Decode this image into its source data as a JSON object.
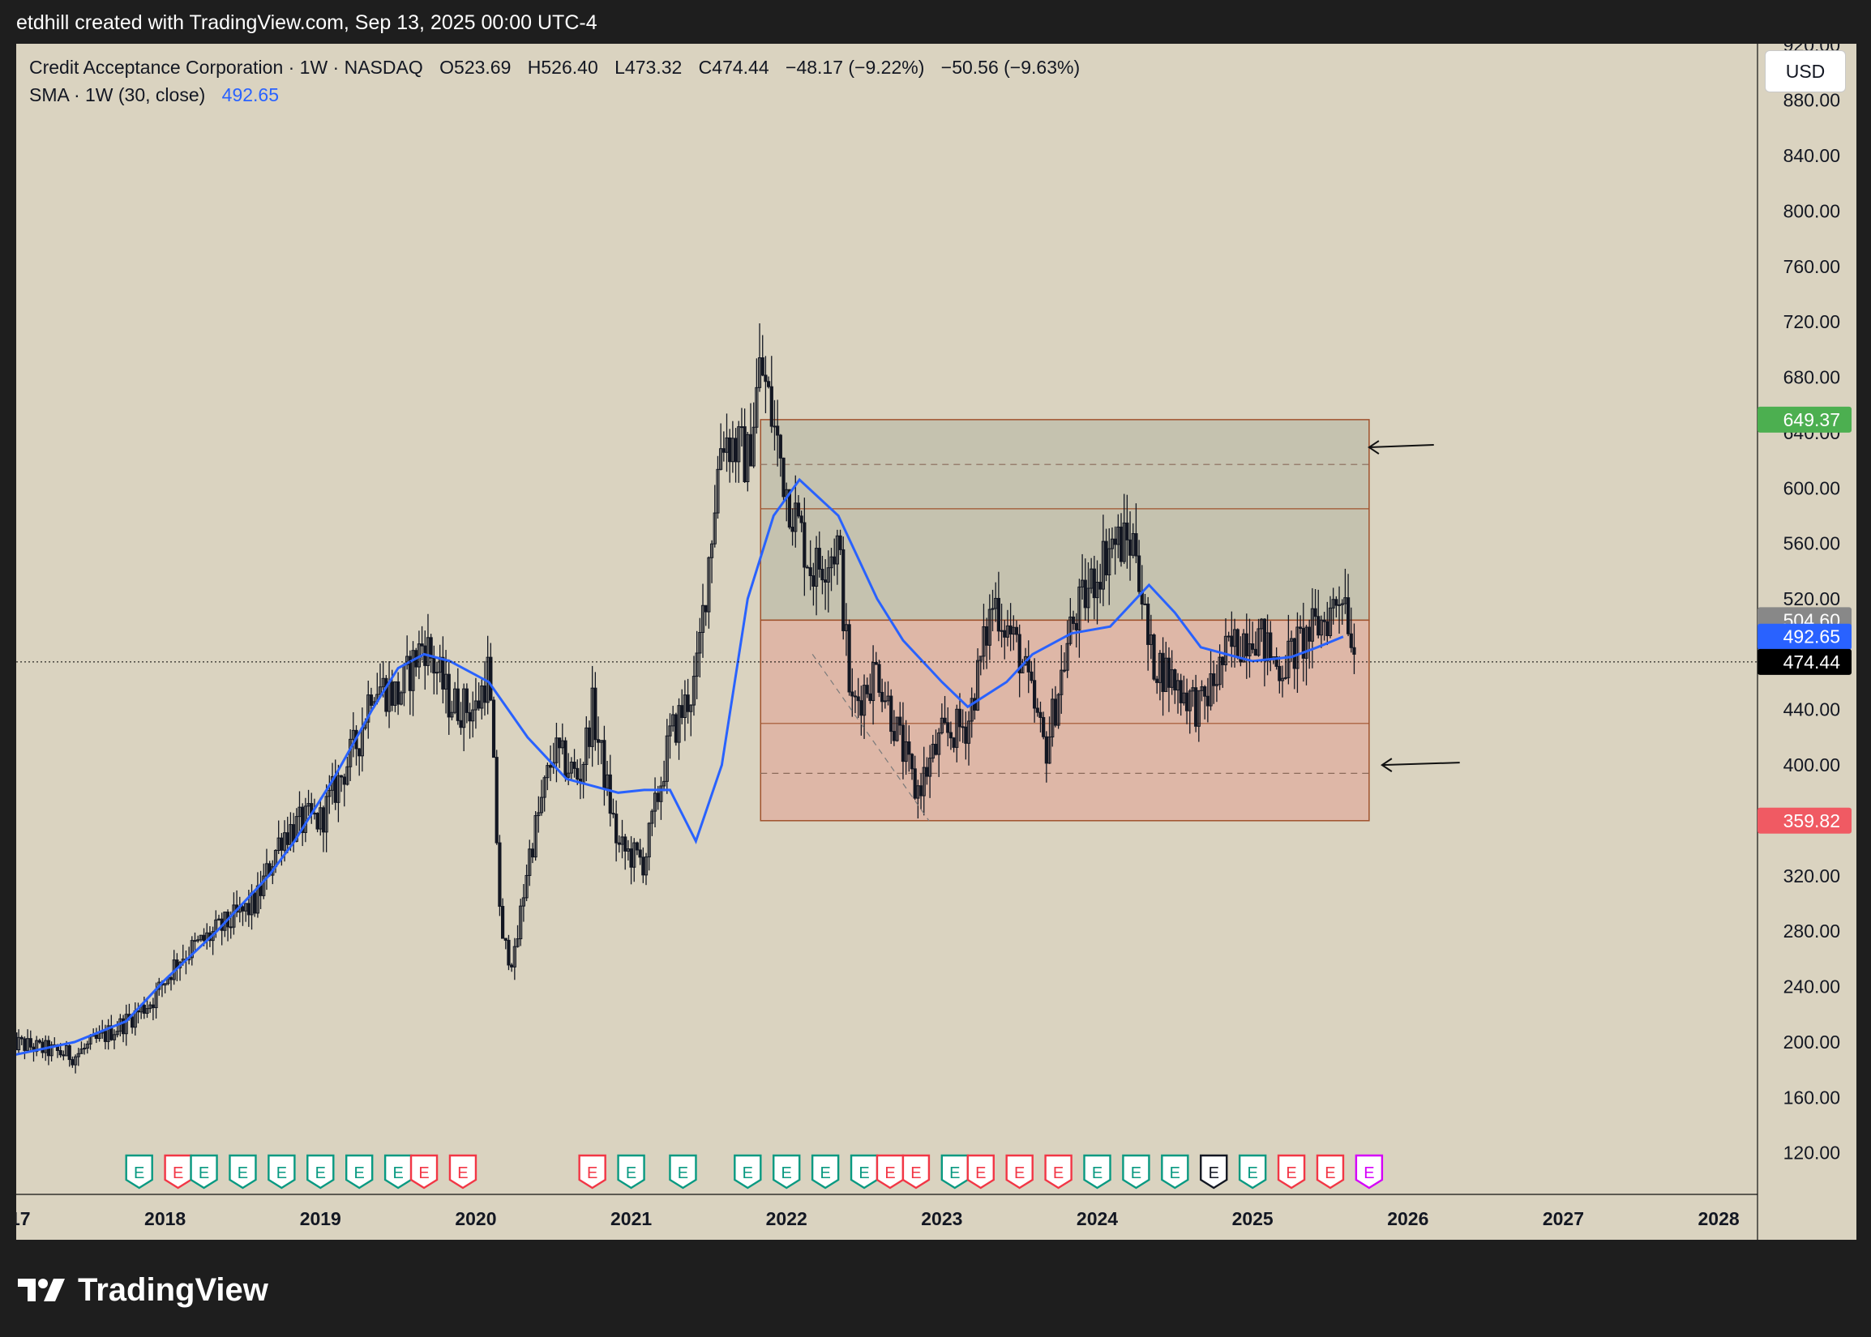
{
  "attribution": "etdhill created with TradingView.com, Sep 13, 2025 00:00 UTC-4",
  "header": {
    "symbol_line": [
      "Credit Acceptance Corporation · 1W · NASDAQ",
      "O523.69",
      "H526.40",
      "L473.32",
      "C474.44",
      "−48.17 (−9.22%)",
      "−50.56 (−9.63%)"
    ],
    "sma_label": "SMA · 1W (30, close)",
    "sma_value": "492.65"
  },
  "currency_button": "USD",
  "footer_brand": "TradingView",
  "colors": {
    "background": "#dad3c0",
    "candle": "#131722",
    "sma": "#2962ff",
    "zone_upper": "#b5b5a0",
    "zone_lower": "#e0a89a",
    "label_green": "#4caf50",
    "label_red": "#f05a63",
    "label_gray": "#888888",
    "label_blue": "#2962ff",
    "label_black": "#000000",
    "earnings_green": "#089981",
    "earnings_red": "#f23645"
  },
  "chart_data": {
    "type": "candlestick",
    "title": "Credit Acceptance Corporation · 1W · NASDAQ",
    "ylim": [
      90,
      950
    ],
    "yticks": [
      "120.00",
      "160.00",
      "200.00",
      "240.00",
      "280.00",
      "320.00",
      "360.00",
      "400.00",
      "440.00",
      "480.00",
      "520.00",
      "560.00",
      "600.00",
      "640.00",
      "680.00",
      "720.00",
      "760.00",
      "800.00",
      "840.00",
      "880.00",
      "920.00"
    ],
    "xticks": [
      "2017",
      "2018",
      "2019",
      "2020",
      "2021",
      "2022",
      "2023",
      "2024",
      "2025",
      "2026",
      "2027",
      "2028"
    ],
    "x_range": [
      "2017-01",
      "2028-04"
    ],
    "price_series": [
      [
        "2017-01",
        200
      ],
      [
        "2017-06",
        190
      ],
      [
        "2017-10",
        215
      ],
      [
        "2017-12",
        230
      ],
      [
        "2018-02",
        260
      ],
      [
        "2018-05",
        280
      ],
      [
        "2018-08",
        300
      ],
      [
        "2018-10",
        350
      ],
      [
        "2018-12",
        360
      ],
      [
        "2019-01",
        360
      ],
      [
        "2019-04",
        420
      ],
      [
        "2019-05",
        460
      ],
      [
        "2019-07",
        450
      ],
      [
        "2019-09",
        490
      ],
      [
        "2019-11",
        445
      ],
      [
        "2020-01",
        440
      ],
      [
        "2020-02",
        470
      ],
      [
        "2020-03",
        270
      ],
      [
        "2020-04",
        260
      ],
      [
        "2020-05",
        330
      ],
      [
        "2020-07",
        410
      ],
      [
        "2020-09",
        390
      ],
      [
        "2020-10",
        440
      ],
      [
        "2020-12",
        340
      ],
      [
        "2021-02",
        330
      ],
      [
        "2021-04",
        420
      ],
      [
        "2021-06",
        460
      ],
      [
        "2021-08",
        640
      ],
      [
        "2021-10",
        620
      ],
      [
        "2021-11",
        690
      ],
      [
        "2022-01",
        600
      ],
      [
        "2022-03",
        540
      ],
      [
        "2022-05",
        560
      ],
      [
        "2022-06",
        440
      ],
      [
        "2022-08",
        470
      ],
      [
        "2022-11",
        380
      ],
      [
        "2023-01",
        420
      ],
      [
        "2023-03",
        430
      ],
      [
        "2023-05",
        520
      ],
      [
        "2023-07",
        480
      ],
      [
        "2023-09",
        410
      ],
      [
        "2023-11",
        500
      ],
      [
        "2024-02",
        560
      ],
      [
        "2024-04",
        560
      ],
      [
        "2024-05",
        480
      ],
      [
        "2024-07",
        460
      ],
      [
        "2024-09",
        440
      ],
      [
        "2024-11",
        480
      ],
      [
        "2025-01",
        500
      ],
      [
        "2025-03",
        470
      ],
      [
        "2025-05",
        490
      ],
      [
        "2025-07",
        510
      ],
      [
        "2025-08",
        530
      ],
      [
        "2025-09",
        474.44
      ]
    ],
    "sma_series": [
      [
        "2017-01",
        190
      ],
      [
        "2017-06",
        200
      ],
      [
        "2017-10",
        215
      ],
      [
        "2018-01",
        245
      ],
      [
        "2018-05",
        280
      ],
      [
        "2018-09",
        320
      ],
      [
        "2018-11",
        345
      ],
      [
        "2019-02",
        390
      ],
      [
        "2019-05",
        440
      ],
      [
        "2019-07",
        470
      ],
      [
        "2019-09",
        480
      ],
      [
        "2019-11",
        475
      ],
      [
        "2020-02",
        460
      ],
      [
        "2020-05",
        420
      ],
      [
        "2020-08",
        390
      ],
      [
        "2020-10",
        385
      ],
      [
        "2020-12",
        380
      ],
      [
        "2021-02",
        382
      ],
      [
        "2021-04",
        382
      ],
      [
        "2021-06",
        345
      ],
      [
        "2021-08",
        400
      ],
      [
        "2021-10",
        520
      ],
      [
        "2021-12",
        580
      ],
      [
        "2022-02",
        606
      ],
      [
        "2022-05",
        580
      ],
      [
        "2022-08",
        520
      ],
      [
        "2022-10",
        490
      ],
      [
        "2023-01",
        460
      ],
      [
        "2023-03",
        442
      ],
      [
        "2023-06",
        460
      ],
      [
        "2023-08",
        480
      ],
      [
        "2023-11",
        495
      ],
      [
        "2024-02",
        500
      ],
      [
        "2024-04",
        520
      ],
      [
        "2024-05",
        530
      ],
      [
        "2024-07",
        510
      ],
      [
        "2024-09",
        485
      ],
      [
        "2024-11",
        480
      ],
      [
        "2025-01",
        475
      ],
      [
        "2025-04",
        478
      ],
      [
        "2025-06",
        485
      ],
      [
        "2025-08",
        492.65
      ]
    ],
    "zones": [
      {
        "from": "2021-11",
        "to": "2025-10",
        "top": 649.37,
        "bottom": 504.6,
        "mid_dash": 617,
        "inner_line": 585,
        "kind": "upper"
      },
      {
        "from": "2021-11",
        "to": "2025-10",
        "top": 504.6,
        "bottom": 359.82,
        "mid_dash": 394,
        "inner_line": 430,
        "kind": "lower"
      }
    ],
    "price_labels": [
      {
        "value": 649.37,
        "text": "649.37",
        "color": "label_green"
      },
      {
        "value": 504.6,
        "text": "504.60",
        "color": "label_gray"
      },
      {
        "value": 492.65,
        "text": "492.65",
        "color": "label_blue"
      },
      {
        "value": 474.44,
        "text": "474.44",
        "color": "label_black"
      },
      {
        "value": 359.82,
        "text": "359.82",
        "color": "label_red"
      }
    ],
    "current_price": 474.44,
    "earnings": [
      {
        "x": "2017-11",
        "kind": "green"
      },
      {
        "x": "2018-02",
        "kind": "red"
      },
      {
        "x": "2018-04",
        "kind": "green"
      },
      {
        "x": "2018-07",
        "kind": "green"
      },
      {
        "x": "2018-10",
        "kind": "green"
      },
      {
        "x": "2019-01",
        "kind": "green"
      },
      {
        "x": "2019-04",
        "kind": "green"
      },
      {
        "x": "2019-07",
        "kind": "green"
      },
      {
        "x": "2019-09",
        "kind": "red"
      },
      {
        "x": "2019-12",
        "kind": "red"
      },
      {
        "x": "2020-10",
        "kind": "red"
      },
      {
        "x": "2021-01",
        "kind": "green"
      },
      {
        "x": "2021-05",
        "kind": "green"
      },
      {
        "x": "2021-10",
        "kind": "green"
      },
      {
        "x": "2022-01",
        "kind": "green"
      },
      {
        "x": "2022-04",
        "kind": "green"
      },
      {
        "x": "2022-07",
        "kind": "green"
      },
      {
        "x": "2022-09",
        "kind": "red"
      },
      {
        "x": "2022-11",
        "kind": "red"
      },
      {
        "x": "2023-02",
        "kind": "green"
      },
      {
        "x": "2023-04",
        "kind": "red"
      },
      {
        "x": "2023-07",
        "kind": "red"
      },
      {
        "x": "2023-10",
        "kind": "red"
      },
      {
        "x": "2024-01",
        "kind": "green"
      },
      {
        "x": "2024-04",
        "kind": "green"
      },
      {
        "x": "2024-07",
        "kind": "green"
      },
      {
        "x": "2024-10",
        "kind": "black"
      },
      {
        "x": "2025-01",
        "kind": "green"
      },
      {
        "x": "2025-04",
        "kind": "red"
      },
      {
        "x": "2025-07",
        "kind": "red"
      },
      {
        "x": "2025-10",
        "kind": "magenta"
      }
    ],
    "earnings_letter": "E"
  }
}
